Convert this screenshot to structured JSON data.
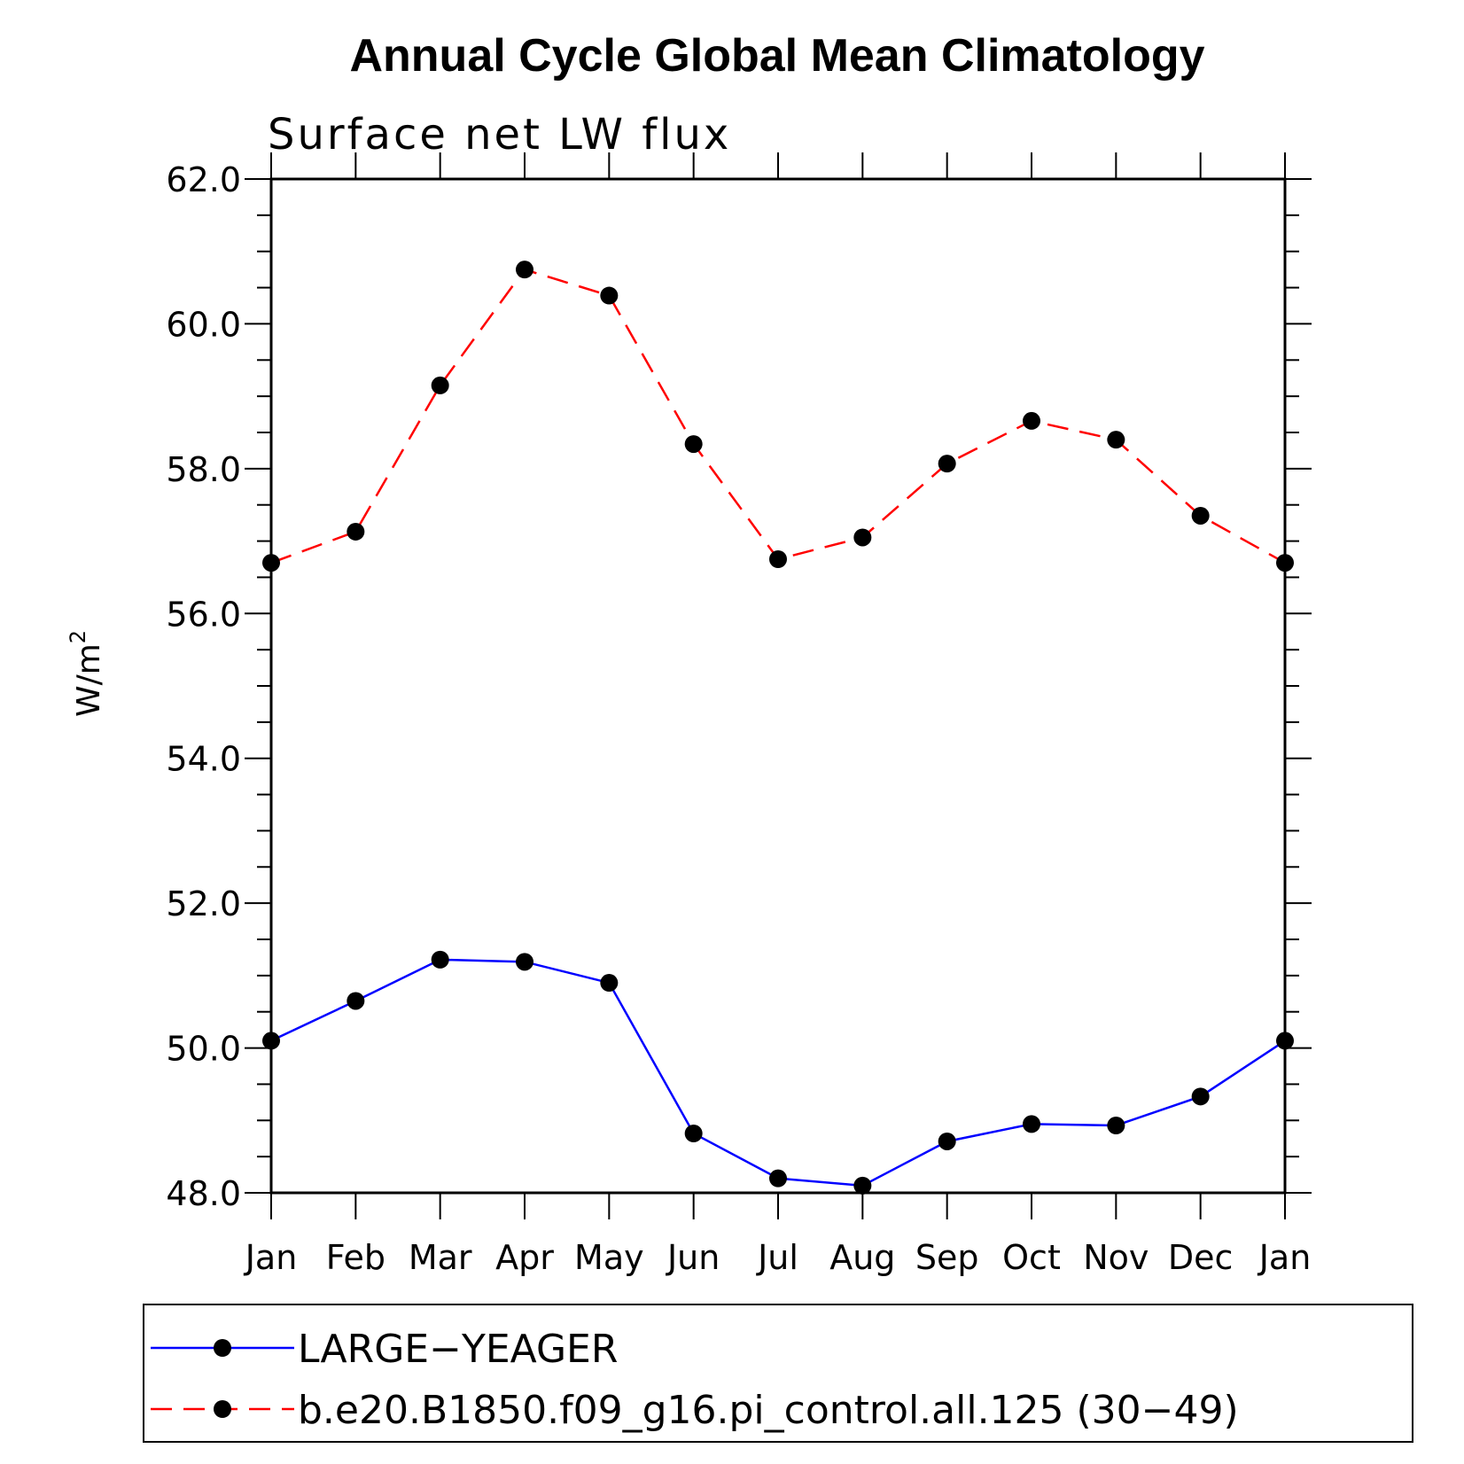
{
  "chart_data": {
    "type": "line",
    "title": "Annual Cycle Global Mean Climatology",
    "subtitle": "Surface net LW flux",
    "xlabel": "",
    "ylabel": "W/m",
    "ylabel_superscript": "2",
    "categories": [
      "Jan",
      "Feb",
      "Mar",
      "Apr",
      "May",
      "Jun",
      "Jul",
      "Aug",
      "Sep",
      "Oct",
      "Nov",
      "Dec",
      "Jan"
    ],
    "ylim": [
      48.0,
      62.0
    ],
    "y_major_ticks": [
      48.0,
      50.0,
      52.0,
      54.0,
      56.0,
      58.0,
      60.0,
      62.0
    ],
    "y_tick_labels": [
      "48.0",
      "50.0",
      "52.0",
      "54.0",
      "56.0",
      "58.0",
      "60.0",
      "62.0"
    ],
    "y_minor_step": 0.5,
    "grid": false,
    "legend_position": "bottom",
    "series": [
      {
        "name": "LARGE−YEAGER",
        "color": "#0000ff",
        "line_style": "solid",
        "marker": "filled-circle",
        "values": [
          50.1,
          50.65,
          51.22,
          51.19,
          50.9,
          48.82,
          48.2,
          48.1,
          48.71,
          48.95,
          48.93,
          49.33,
          50.1
        ]
      },
      {
        "name": "b.e20.B1850.f09_g16.pi_control.all.125 (30−49)",
        "color": "#ff0000",
        "line_style": "dashed",
        "marker": "filled-circle",
        "values": [
          56.7,
          57.13,
          59.15,
          60.75,
          60.39,
          58.34,
          56.75,
          57.05,
          58.07,
          58.66,
          58.4,
          57.35,
          56.7
        ]
      }
    ]
  }
}
